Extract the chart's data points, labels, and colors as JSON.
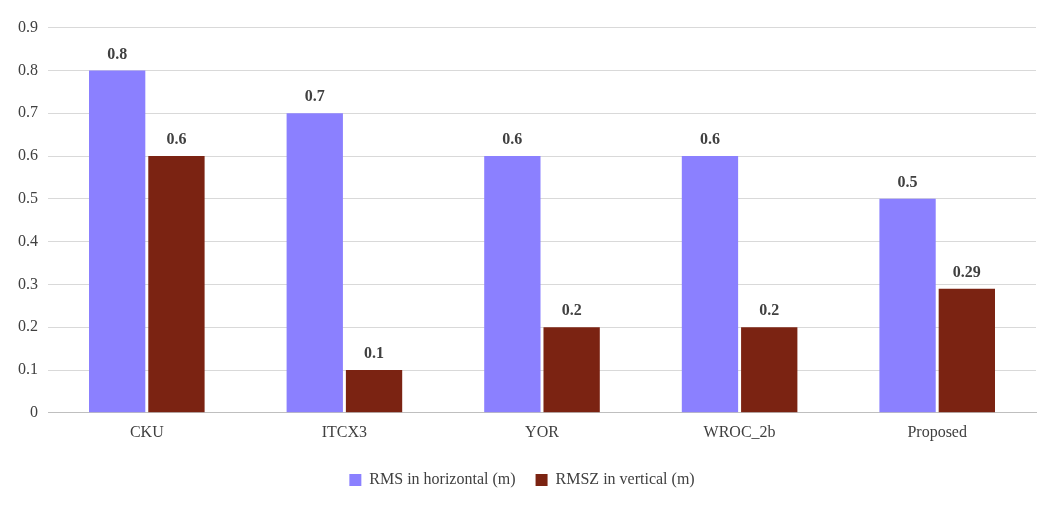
{
  "chart_data": {
    "type": "bar",
    "categories": [
      "CKU",
      "ITCX3",
      "YOR",
      "WROC_2b",
      "Proposed"
    ],
    "series": [
      {
        "name": "RMS in horizontal (m)",
        "color": "#8b80ff",
        "values": [
          0.8,
          0.7,
          0.6,
          0.6,
          0.5
        ]
      },
      {
        "name": "RMSZ in vertical (m)",
        "color": "#7b2312",
        "values": [
          0.6,
          0.1,
          0.2,
          0.2,
          0.29
        ]
      }
    ],
    "ylim": [
      0,
      0.9
    ],
    "yticks": [
      0,
      0.1,
      0.2,
      0.3,
      0.4,
      0.5,
      0.6,
      0.7,
      0.8,
      0.9
    ],
    "grid": "y",
    "legend": "bottom",
    "data_labels": true
  }
}
